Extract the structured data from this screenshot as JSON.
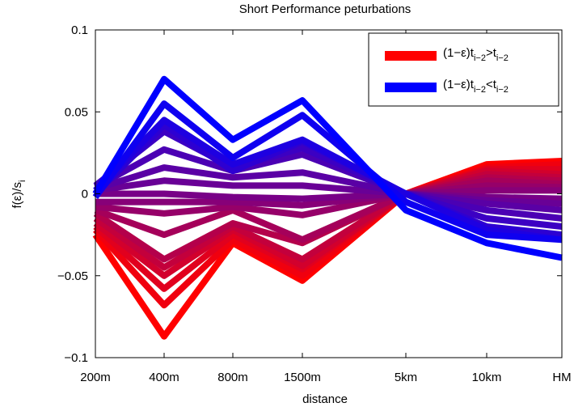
{
  "chart_data": {
    "type": "line",
    "title": "Short Performance peturbations",
    "xlabel": "distance",
    "ylabel": "f(ε)/s",
    "ylabel_sub": "i",
    "x": [
      "200m",
      "400m",
      "800m",
      "1500m",
      "5km",
      "10km",
      "HM"
    ],
    "xticks": [
      "200m",
      "400m",
      "800m",
      "1500m",
      "5km",
      "10km",
      "HM"
    ],
    "ylim": [
      -0.1,
      0.1
    ],
    "yticks": [
      -0.1,
      -0.05,
      0,
      0.05,
      0.1
    ],
    "ytick_labels": [
      "−0.1",
      "−0.05",
      "0",
      "0.05",
      "0.1"
    ],
    "grid": false,
    "legend_position": "top-right",
    "colors": {
      "start": "#ff0000",
      "end": "#0000ff",
      "axis": "#000000"
    },
    "legend": [
      {
        "color": "#ff0000",
        "pre": "(1−ε)t",
        "sub1": "i−2",
        "op": ">",
        "t2": "t",
        "sub2": "i−2"
      },
      {
        "color": "#0000ff",
        "pre": "(1−ε)t",
        "sub1": "i−2",
        "op": "<",
        "t2": "t",
        "sub2": "i−2"
      }
    ],
    "series": [
      {
        "values": [
          -0.025,
          -0.087,
          -0.03,
          -0.053,
          0.0,
          0.018,
          0.02
        ]
      },
      {
        "values": [
          -0.022,
          -0.068,
          -0.028,
          -0.05,
          0.0,
          0.016,
          0.018
        ]
      },
      {
        "values": [
          -0.02,
          -0.058,
          -0.025,
          -0.046,
          0.0,
          0.015,
          0.015
        ]
      },
      {
        "values": [
          -0.018,
          -0.05,
          -0.022,
          -0.044,
          0.0,
          0.014,
          0.012
        ]
      },
      {
        "values": [
          -0.015,
          -0.045,
          -0.02,
          -0.04,
          0.0,
          0.012,
          0.01
        ]
      },
      {
        "values": [
          -0.012,
          -0.04,
          -0.018,
          -0.03,
          0.0,
          0.01,
          0.008
        ]
      },
      {
        "values": [
          -0.01,
          -0.025,
          -0.01,
          -0.028,
          0.0,
          0.008,
          0.006
        ]
      },
      {
        "values": [
          -0.008,
          -0.012,
          -0.008,
          -0.013,
          0.0,
          0.005,
          0.004
        ]
      },
      {
        "values": [
          -0.005,
          -0.005,
          -0.005,
          -0.007,
          0.0,
          0.002,
          0.002
        ]
      },
      {
        "values": [
          0.0,
          0.0,
          -0.002,
          -0.003,
          0.0,
          -0.002,
          -0.003
        ]
      },
      {
        "values": [
          0.002,
          0.008,
          0.005,
          0.005,
          0.0,
          -0.004,
          -0.006
        ]
      },
      {
        "values": [
          0.003,
          0.016,
          0.01,
          0.013,
          0.0,
          -0.006,
          -0.01
        ]
      },
      {
        "values": [
          0.004,
          0.027,
          0.014,
          0.024,
          0.0,
          -0.01,
          -0.015
        ]
      },
      {
        "values": [
          0.005,
          0.038,
          0.016,
          0.028,
          0.0,
          -0.015,
          -0.02
        ]
      },
      {
        "values": [
          0.0,
          0.042,
          0.014,
          0.032,
          0.0,
          -0.02,
          -0.025
        ]
      },
      {
        "values": [
          0.002,
          0.045,
          0.018,
          0.033,
          0.0,
          -0.022,
          -0.028
        ]
      },
      {
        "values": [
          -0.002,
          0.055,
          0.022,
          0.048,
          -0.005,
          -0.025,
          -0.028
        ]
      },
      {
        "values": [
          0.0,
          0.07,
          0.033,
          0.057,
          -0.01,
          -0.03,
          -0.039
        ]
      }
    ]
  }
}
